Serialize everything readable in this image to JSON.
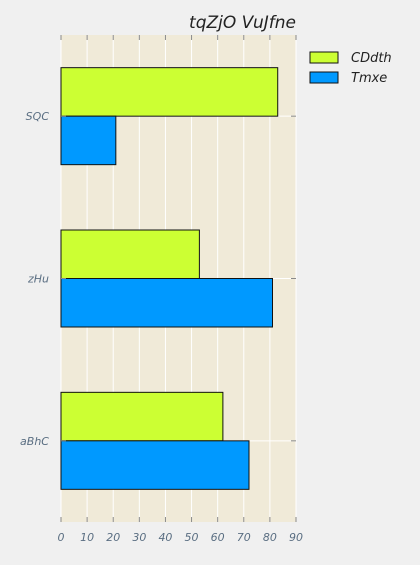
{
  "chart_data": {
    "type": "bar",
    "orientation": "horizontal",
    "title": "tqZjO VuJfne",
    "xlabel": "",
    "ylabel": "",
    "categories": [
      "SQC",
      "zHu",
      "aBhC"
    ],
    "series": [
      {
        "name": "CDdth",
        "values": [
          83,
          53,
          62
        ],
        "color": "#ccff33"
      },
      {
        "name": "Tmxe",
        "values": [
          21,
          81,
          72
        ],
        "color": "#0099ff"
      }
    ],
    "xlim": [
      0,
      90
    ],
    "xticks": [
      0,
      10,
      20,
      30,
      40,
      50,
      60,
      70,
      80,
      90
    ],
    "grid": true,
    "legend": "top-right",
    "background_color": "#f0ead8",
    "grid_color": "#ffffff"
  }
}
